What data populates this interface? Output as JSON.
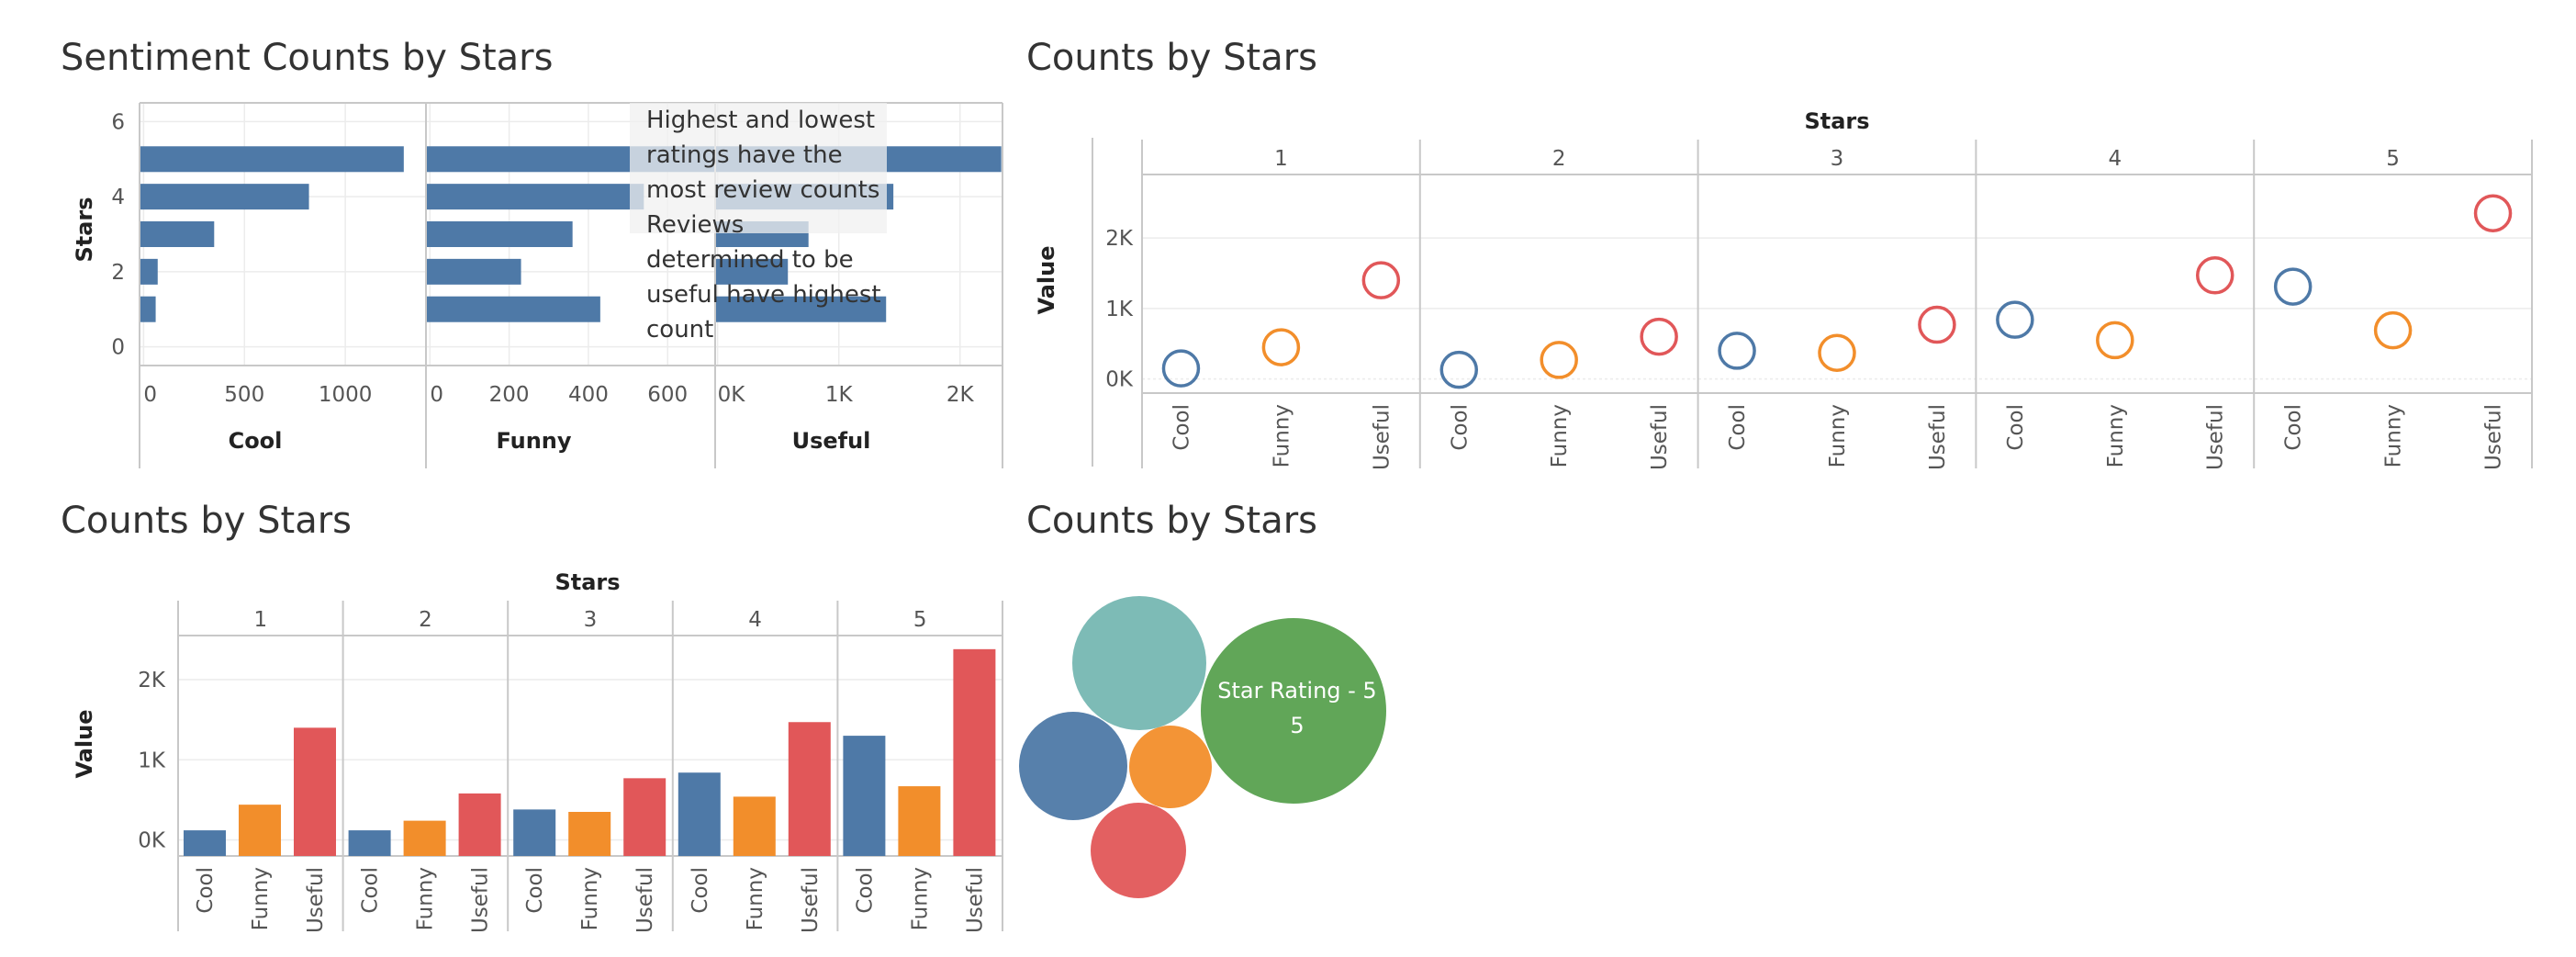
{
  "colors": {
    "cool": "#4e79a7",
    "funny": "#f28e2b",
    "useful": "#e15759",
    "teal": "#76b7b2",
    "green": "#59a14f",
    "bar": "#4e79a7"
  },
  "panels": {
    "top_left": {
      "title": "Sentiment Counts by Stars",
      "annotation": [
        "Highest and lowest",
        "ratings have the",
        "most review counts",
        "Reviews",
        "determined to be",
        "useful have highest",
        "count"
      ]
    },
    "top_right": {
      "title": "Counts by Stars"
    },
    "bottom_left": {
      "title": "Counts by Stars"
    },
    "bottom_right": {
      "title": "Counts by Stars"
    }
  },
  "chart_data": [
    {
      "type": "bar",
      "orientation": "horizontal",
      "title": "Sentiment Counts by Stars",
      "ylabel": "Stars",
      "y_ticks": [
        "0",
        "2",
        "4",
        "6"
      ],
      "ylim": [
        -0.5,
        6.5
      ],
      "stars": [
        1,
        2,
        3,
        4,
        5
      ],
      "series": [
        {
          "name": "Cool",
          "values": [
            60,
            70,
            350,
            820,
            1290
          ],
          "xlim": [
            -20,
            1400
          ],
          "x_ticks": [
            "0",
            "500",
            "1000"
          ],
          "x_tick_values": [
            0,
            500,
            1000
          ]
        },
        {
          "name": "Funny",
          "values": [
            430,
            230,
            360,
            540,
            720
          ],
          "xlim": [
            -10,
            720
          ],
          "x_ticks": [
            "0",
            "200",
            "400",
            "600"
          ],
          "x_tick_values": [
            0,
            200,
            400,
            600
          ]
        },
        {
          "name": "Useful",
          "values": [
            1390,
            580,
            750,
            1450,
            2340
          ],
          "xlim": [
            -20,
            2350
          ],
          "x_ticks": [
            "0K",
            "1K",
            "2K"
          ],
          "x_tick_values": [
            0,
            1000,
            2000
          ]
        }
      ]
    },
    {
      "type": "scatter",
      "title": "Counts by Stars",
      "column_header": "Stars",
      "categories": [
        "1",
        "2",
        "3",
        "4",
        "5"
      ],
      "measures": [
        "Cool",
        "Funny",
        "Useful"
      ],
      "ylabel": "Value",
      "y_ticks": [
        "0K",
        "1K",
        "2K"
      ],
      "ylim": [
        -200,
        2900
      ],
      "series": [
        {
          "name": "Cool",
          "values": [
            150,
            130,
            400,
            840,
            1310
          ]
        },
        {
          "name": "Funny",
          "values": [
            450,
            270,
            370,
            550,
            690
          ]
        },
        {
          "name": "Useful",
          "values": [
            1400,
            600,
            770,
            1470,
            2350
          ]
        }
      ]
    },
    {
      "type": "bar",
      "title": "Counts by Stars",
      "column_header": "Stars",
      "categories": [
        "1",
        "2",
        "3",
        "4",
        "5"
      ],
      "measures": [
        "Cool",
        "Funny",
        "Useful"
      ],
      "ylabel": "Value",
      "y_ticks": [
        "0K",
        "1K",
        "2K"
      ],
      "ylim": [
        -200,
        2550
      ],
      "series": [
        {
          "name": "Cool",
          "values": [
            120,
            120,
            380,
            840,
            1300
          ]
        },
        {
          "name": "Funny",
          "values": [
            440,
            240,
            350,
            540,
            670
          ]
        },
        {
          "name": "Useful",
          "values": [
            1400,
            580,
            770,
            1470,
            2380
          ]
        }
      ]
    },
    {
      "type": "bubble",
      "title": "Counts by Stars",
      "bubbles": [
        {
          "color": "#76b7b2",
          "label": ""
        },
        {
          "color": "#59a14f",
          "label": "Star Rating - 5\n5"
        },
        {
          "color": "#4e79a7",
          "label": ""
        },
        {
          "color": "#f28e2b",
          "label": ""
        },
        {
          "color": "#e15759",
          "label": ""
        }
      ]
    }
  ]
}
